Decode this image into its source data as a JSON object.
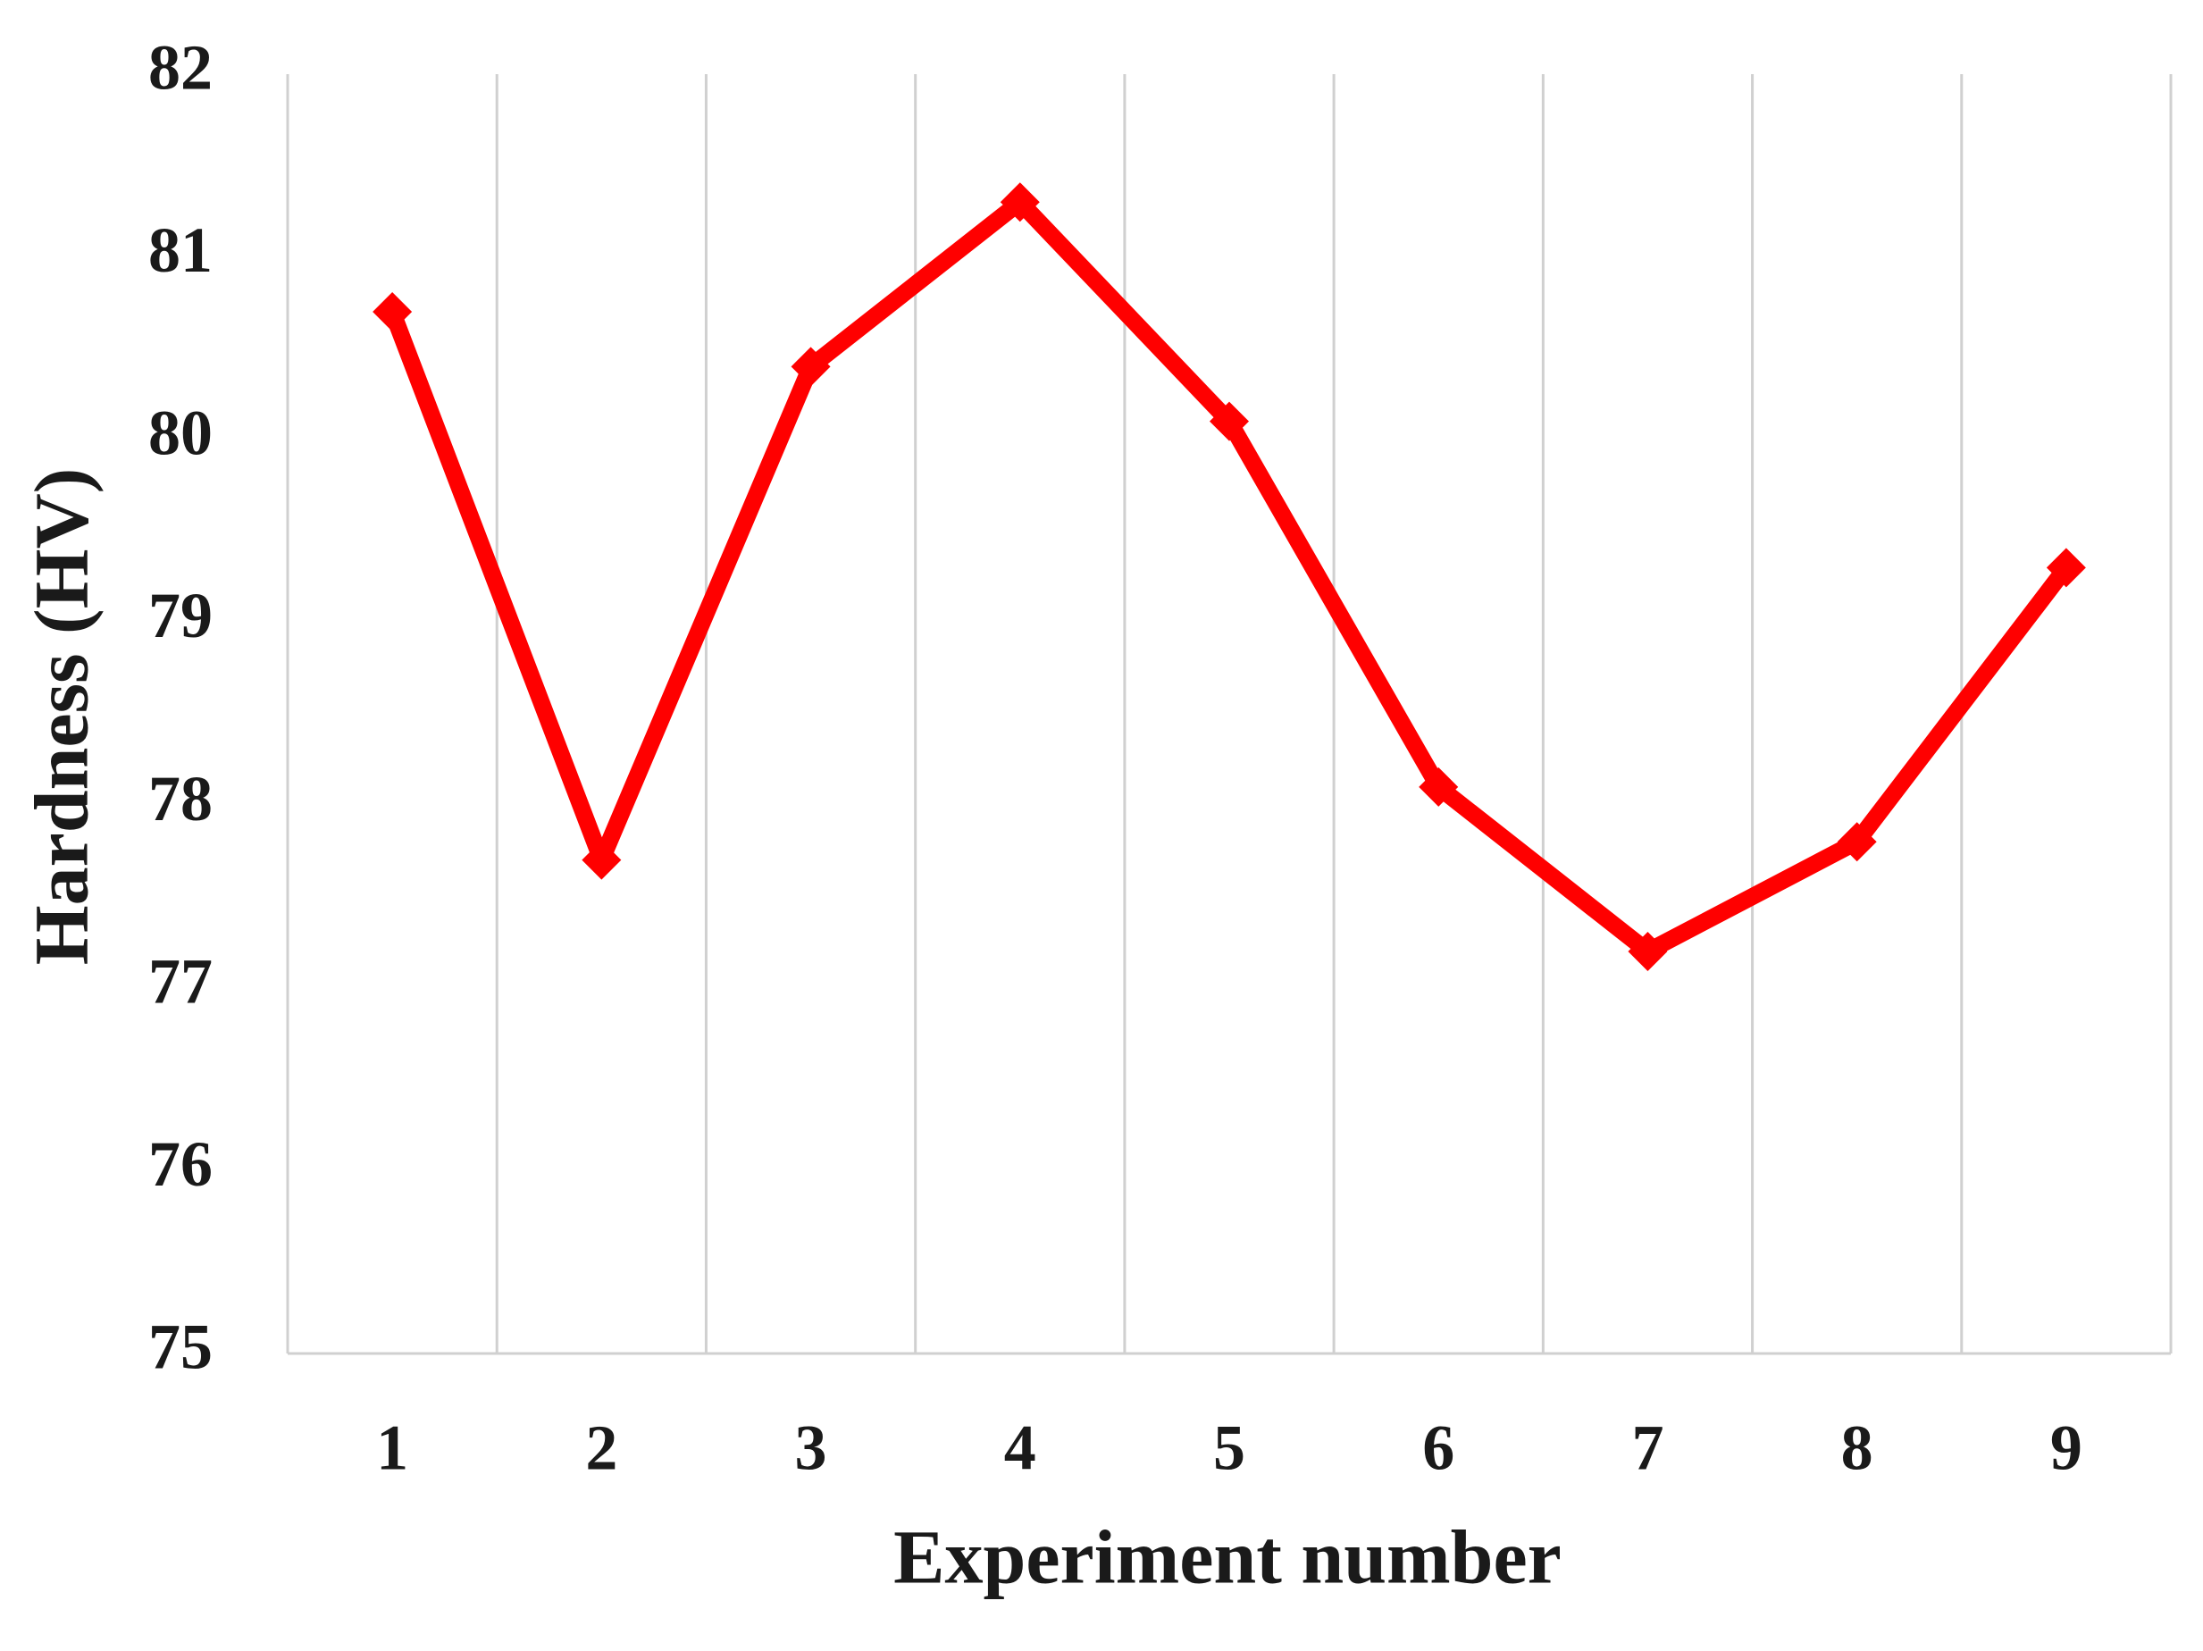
{
  "chart_data": {
    "type": "line",
    "x_label": "Experiment number",
    "y_label": "Hardness (HV)",
    "categories": [
      "1",
      "2",
      "3",
      "4",
      "5",
      "6",
      "7",
      "8",
      "9"
    ],
    "series": [
      {
        "color": "#ff0000",
        "values": [
          80.7,
          77.7,
          80.4,
          81.3,
          80.1,
          78.1,
          77.2,
          77.8,
          79.3
        ]
      }
    ],
    "ylim": [
      75,
      82
    ],
    "yticks": [
      75,
      76,
      77,
      78,
      79,
      80,
      81,
      82
    ],
    "vertical_grid": true
  }
}
